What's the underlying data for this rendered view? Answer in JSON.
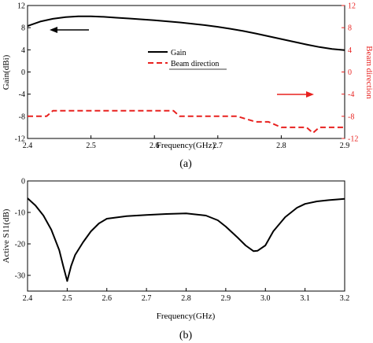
{
  "chart_data": [
    {
      "type": "line",
      "caption": "(a)",
      "xlabel": "Frequency(GHz)",
      "ylabel": "Gain(dBi)",
      "y2label": "Beam direction",
      "xlim": [
        2.4,
        2.9
      ],
      "ylim": [
        -12,
        12
      ],
      "y2lim": [
        -12,
        12
      ],
      "xticks": [
        "2.4",
        "2.5",
        "2.6",
        "2.7",
        "2.8",
        "2.9"
      ],
      "yticks": [
        "12",
        "8",
        "4",
        "0",
        "-4",
        "-8",
        "-12"
      ],
      "y2ticks": [
        "12",
        "8",
        "4",
        "0",
        "-4",
        "-8",
        "-12"
      ],
      "right_axis_color": "#e8211f",
      "legend_position": "center",
      "series": [
        {
          "name": "Gain",
          "axis": "left",
          "color": "#000000",
          "style": "solid",
          "x": [
            2.4,
            2.42,
            2.44,
            2.46,
            2.48,
            2.5,
            2.52,
            2.54,
            2.56,
            2.58,
            2.6,
            2.62,
            2.64,
            2.66,
            2.68,
            2.7,
            2.72,
            2.74,
            2.76,
            2.78,
            2.8,
            2.82,
            2.84,
            2.86,
            2.88,
            2.9
          ],
          "y": [
            8.3,
            9.1,
            9.6,
            9.9,
            10.05,
            10.05,
            9.95,
            9.8,
            9.65,
            9.5,
            9.35,
            9.15,
            8.95,
            8.7,
            8.45,
            8.15,
            7.8,
            7.4,
            6.95,
            6.45,
            5.95,
            5.45,
            4.95,
            4.5,
            4.15,
            3.95
          ]
        },
        {
          "name": "Beam direction",
          "axis": "right",
          "color": "#e8211f",
          "style": "dashed",
          "x": [
            2.4,
            2.43,
            2.44,
            2.5,
            2.55,
            2.6,
            2.63,
            2.64,
            2.7,
            2.73,
            2.76,
            2.78,
            2.8,
            2.82,
            2.84,
            2.85,
            2.86,
            2.9
          ],
          "y": [
            -8,
            -8,
            -7,
            -7,
            -7,
            -7,
            -7,
            -8,
            -8,
            -8,
            -9,
            -9,
            -10,
            -10,
            -10,
            -11,
            -10,
            -10
          ]
        }
      ]
    },
    {
      "type": "line",
      "caption": "(b)",
      "xlabel": "Frequency(GHz)",
      "ylabel": "Active S11(dB)",
      "xlim": [
        2.4,
        3.2
      ],
      "ylim": [
        -35,
        0
      ],
      "xticks": [
        "2.4",
        "2.5",
        "2.6",
        "2.7",
        "2.8",
        "2.9",
        "3.0",
        "3.1",
        "3.2"
      ],
      "yticks": [
        "0",
        "-10",
        "-20",
        "-30"
      ],
      "series": [
        {
          "name": "",
          "color": "#000000",
          "style": "solid",
          "x": [
            2.4,
            2.42,
            2.44,
            2.46,
            2.48,
            2.49,
            2.5,
            2.51,
            2.52,
            2.54,
            2.56,
            2.58,
            2.6,
            2.65,
            2.7,
            2.75,
            2.8,
            2.85,
            2.88,
            2.9,
            2.93,
            2.95,
            2.97,
            2.98,
            3.0,
            3.02,
            3.05,
            3.08,
            3.1,
            3.13,
            3.16,
            3.2
          ],
          "y": [
            -5.5,
            -7.8,
            -11,
            -15.5,
            -22,
            -27,
            -31.8,
            -27,
            -23.5,
            -19.5,
            -16,
            -13.5,
            -12,
            -11.2,
            -10.8,
            -10.5,
            -10.3,
            -11,
            -12.5,
            -14.5,
            -18,
            -20.5,
            -22.3,
            -22.2,
            -20.5,
            -16,
            -11.5,
            -8.5,
            -7.3,
            -6.5,
            -6.1,
            -5.7
          ]
        }
      ]
    }
  ]
}
